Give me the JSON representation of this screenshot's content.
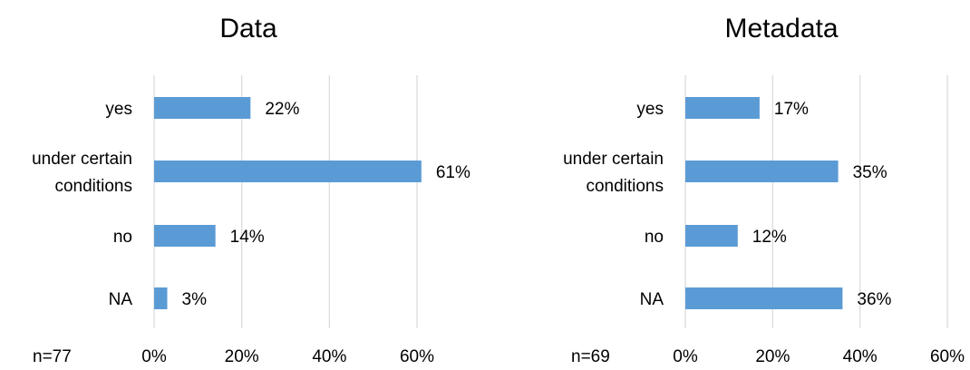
{
  "chart_data": [
    {
      "type": "bar",
      "orientation": "horizontal",
      "title": "Data",
      "sample_size": "n=77",
      "categories": [
        "yes",
        "under certain conditions",
        "no",
        "NA"
      ],
      "category_lines": [
        [
          "yes"
        ],
        [
          "under certain",
          "conditions"
        ],
        [
          "no"
        ],
        [
          "NA"
        ]
      ],
      "values": [
        22,
        61,
        14,
        3
      ],
      "value_labels": [
        "22%",
        "61%",
        "14%",
        "3%"
      ],
      "xlim": [
        0,
        60
      ],
      "xticks": [
        "0%",
        "20%",
        "40%",
        "60%"
      ],
      "grid": true,
      "color": "#5b9bd5"
    },
    {
      "type": "bar",
      "orientation": "horizontal",
      "title": "Metadata",
      "sample_size": "n=69",
      "categories": [
        "yes",
        "under certain conditions",
        "no",
        "NA"
      ],
      "category_lines": [
        [
          "yes"
        ],
        [
          "under certain",
          "conditions"
        ],
        [
          "no"
        ],
        [
          "NA"
        ]
      ],
      "values": [
        17,
        35,
        12,
        36
      ],
      "value_labels": [
        "17%",
        "35%",
        "12%",
        "36%"
      ],
      "xlim": [
        0,
        60
      ],
      "xticks": [
        "0%",
        "20%",
        "40%",
        "60%"
      ],
      "grid": true,
      "color": "#5b9bd5"
    }
  ]
}
